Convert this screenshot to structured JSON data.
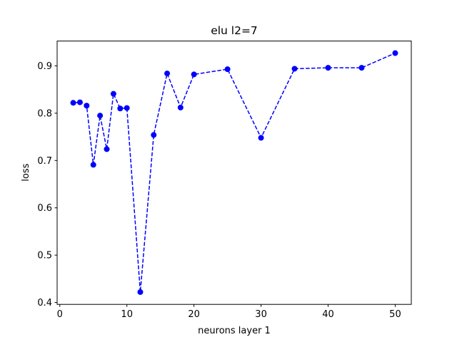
{
  "chart_data": {
    "type": "line",
    "title": "elu l2=7",
    "xlabel": "neurons layer 1",
    "ylabel": "loss",
    "xlim": [
      -0.4,
      52.4
    ],
    "ylim": [
      0.396,
      0.9525
    ],
    "xticks": [
      0,
      10,
      20,
      30,
      40,
      50
    ],
    "yticks": [
      0.4,
      0.5,
      0.6,
      0.7,
      0.8,
      0.9
    ],
    "xtick_labels": [
      "0",
      "10",
      "20",
      "30",
      "40",
      "50"
    ],
    "ytick_labels": [
      "0.4",
      "0.5",
      "0.6",
      "0.7",
      "0.8",
      "0.9"
    ],
    "grid": false,
    "series": [
      {
        "color": "#0000ff",
        "line_style": "dashed",
        "marker": "circle",
        "x": [
          2,
          3,
          4,
          5,
          6,
          7,
          8,
          9,
          10,
          12,
          14,
          16,
          18,
          20,
          25,
          30,
          35,
          40,
          45,
          50
        ],
        "y": [
          0.822,
          0.823,
          0.816,
          0.691,
          0.795,
          0.724,
          0.841,
          0.81,
          0.811,
          0.422,
          0.754,
          0.884,
          0.812,
          0.882,
          0.893,
          0.748,
          0.894,
          0.896,
          0.896,
          0.927
        ]
      }
    ]
  }
}
